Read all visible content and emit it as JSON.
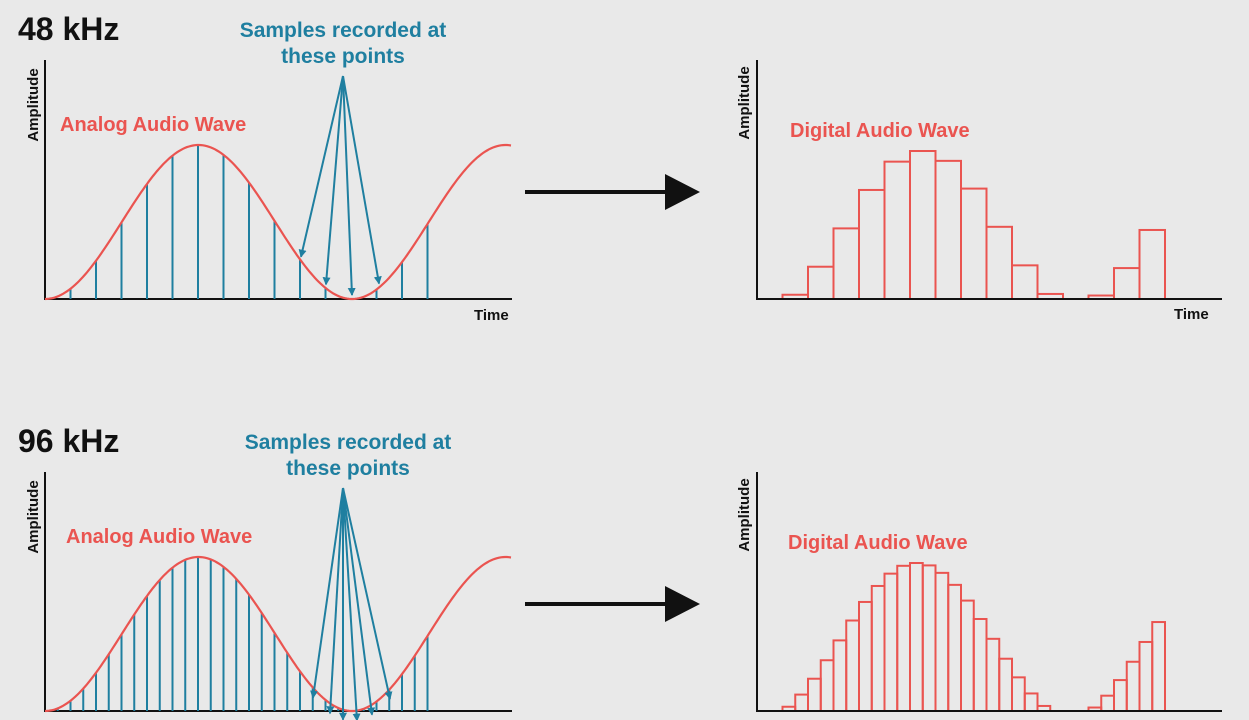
{
  "panels": [
    {
      "rate": "48 kHz",
      "analog": {
        "annotation": [
          "Samples recorded at",
          "these points"
        ],
        "y_label": "Amplitude",
        "wave_label": "Analog Audio Wave",
        "x_label": "Time"
      },
      "digital": {
        "y_label": "Amplitude",
        "wave_label": "Digital Audio Wave",
        "x_label": "Time"
      }
    },
    {
      "rate": "96 kHz",
      "analog": {
        "annotation": [
          "Samples recorded at",
          "these points"
        ],
        "y_label": "Amplitude",
        "wave_label": "Analog Audio Wave"
      },
      "digital": {
        "y_label": "Amplitude",
        "wave_label": "Digital Audio Wave"
      }
    }
  ]
}
